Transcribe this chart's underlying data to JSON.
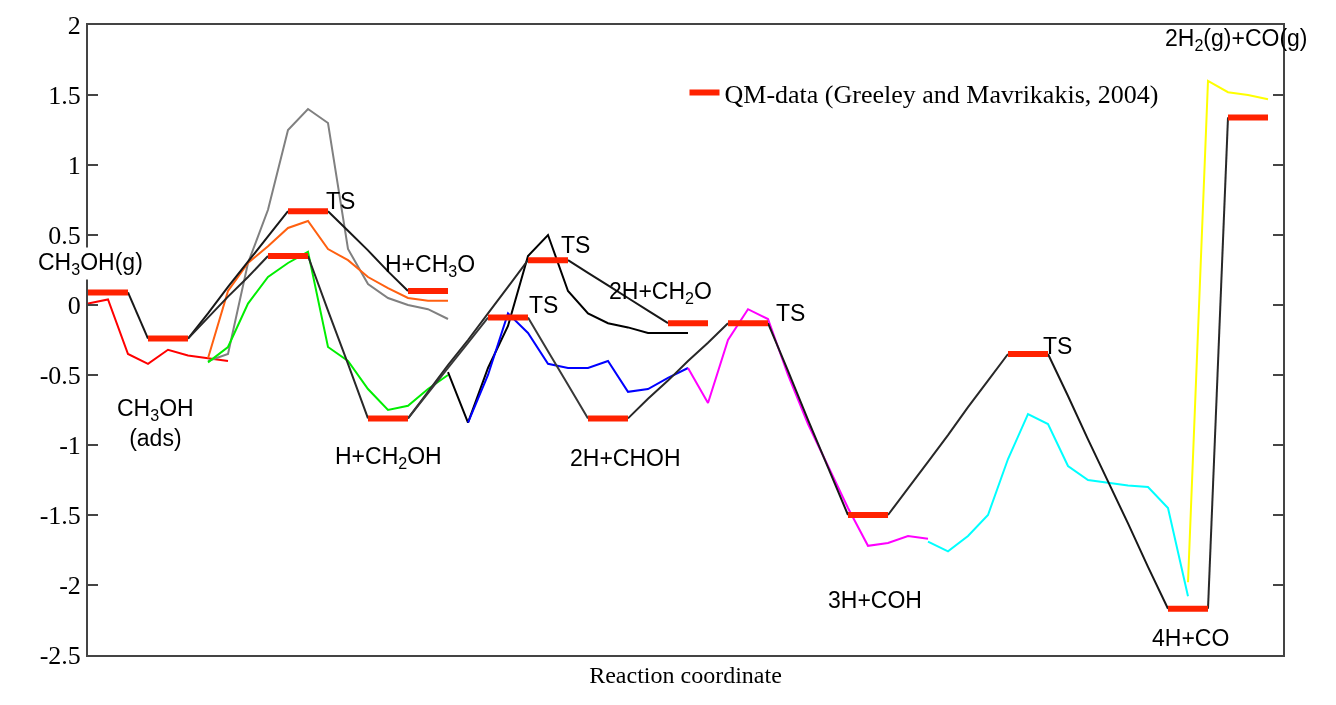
{
  "chart_data": {
    "type": "line",
    "xlabel": "Reaction coordinate",
    "categories": [
      null,
      null,
      null,
      null,
      null,
      null,
      null,
      null,
      null,
      null,
      null,
      null,
      null,
      null,
      null,
      null,
      null,
      null,
      null,
      null,
      null,
      null,
      null,
      null,
      null,
      null,
      null,
      null,
      null,
      null,
      null,
      null,
      null,
      null,
      null,
      null,
      null,
      null,
      null,
      null,
      null,
      null,
      null,
      null,
      null,
      null,
      null,
      null,
      null,
      null,
      null,
      null,
      null,
      null,
      null,
      null,
      null,
      null,
      null,
      null
    ],
    "ylim": [
      -2.5,
      2
    ],
    "yticks": [
      -2.5,
      -2,
      -1.5,
      -1,
      -0.5,
      0,
      0.5,
      1,
      1.5,
      2
    ],
    "tick_labels": "y",
    "grid": false,
    "legend": "top right",
    "line_style": "solid",
    "series": [
      {
        "color": "#ff0000",
        "values": [
          0.01,
          0.04,
          -0.35,
          -0.42,
          -0.32,
          -0.36,
          -0.38,
          -0.4,
          null,
          null,
          null,
          null,
          null,
          null,
          null,
          null,
          null,
          null,
          null,
          null,
          null,
          null,
          null,
          null,
          null,
          null,
          null,
          null,
          null,
          null,
          null,
          null,
          null,
          null,
          null,
          null,
          null,
          null,
          null,
          null,
          null,
          null,
          null,
          null,
          null,
          null,
          null,
          null,
          null,
          null,
          null,
          null,
          null,
          null,
          null,
          null,
          null,
          null,
          null,
          null
        ]
      },
      {
        "color": "#808080",
        "values": [
          null,
          null,
          null,
          null,
          null,
          null,
          -0.4,
          -0.35,
          0.3,
          0.68,
          1.25,
          1.4,
          1.3,
          0.4,
          0.15,
          0.05,
          0,
          -0.03,
          -0.1,
          null,
          null,
          null,
          null,
          null,
          null,
          null,
          null,
          null,
          null,
          null,
          null,
          null,
          null,
          null,
          null,
          null,
          null,
          null,
          null,
          null,
          null,
          null,
          null,
          null,
          null,
          null,
          null,
          null,
          null,
          null,
          null,
          null,
          null,
          null,
          null,
          null,
          null,
          null,
          null,
          null
        ]
      },
      {
        "color": "#ff6010",
        "values": [
          null,
          null,
          null,
          null,
          null,
          null,
          -0.38,
          0.1,
          0.3,
          0.42,
          0.55,
          0.6,
          0.4,
          0.32,
          0.2,
          0.12,
          0.05,
          0.03,
          0.03,
          null,
          null,
          null,
          null,
          null,
          null,
          null,
          null,
          null,
          null,
          null,
          null,
          null,
          null,
          null,
          null,
          null,
          null,
          null,
          null,
          null,
          null,
          null,
          null,
          null,
          null,
          null,
          null,
          null,
          null,
          null,
          null,
          null,
          null,
          null,
          null,
          null,
          null,
          null,
          null,
          null
        ]
      },
      {
        "color": "#00ee00",
        "values": [
          null,
          null,
          null,
          null,
          null,
          null,
          -0.41,
          -0.3,
          0.01,
          0.2,
          0.3,
          0.38,
          -0.3,
          -0.4,
          -0.6,
          -0.75,
          -0.72,
          -0.6,
          -0.5,
          null,
          null,
          null,
          null,
          null,
          null,
          null,
          null,
          null,
          null,
          null,
          null,
          null,
          null,
          null,
          null,
          null,
          null,
          null,
          null,
          null,
          null,
          null,
          null,
          null,
          null,
          null,
          null,
          null,
          null,
          null,
          null,
          null,
          null,
          null,
          null,
          null,
          null,
          null,
          null,
          null
        ]
      },
      {
        "color": "#000000",
        "values": [
          null,
          null,
          null,
          null,
          null,
          null,
          null,
          null,
          null,
          null,
          null,
          null,
          null,
          null,
          null,
          null,
          null,
          null,
          -0.48,
          -0.84,
          -0.45,
          -0.15,
          0.35,
          0.5,
          0.1,
          -0.06,
          -0.13,
          -0.16,
          -0.2,
          -0.2,
          -0.2,
          null,
          null,
          null,
          null,
          null,
          null,
          null,
          null,
          null,
          null,
          null,
          null,
          null,
          null,
          null,
          null,
          null,
          null,
          null,
          null,
          null,
          null,
          null,
          null,
          null,
          null,
          null,
          null,
          null
        ]
      },
      {
        "color": "#0000ff",
        "values": [
          null,
          null,
          null,
          null,
          null,
          null,
          null,
          null,
          null,
          null,
          null,
          null,
          null,
          null,
          null,
          null,
          null,
          null,
          null,
          -0.84,
          -0.5,
          -0.06,
          -0.2,
          -0.42,
          -0.45,
          -0.45,
          -0.4,
          -0.62,
          -0.6,
          -0.52,
          -0.45,
          null,
          null,
          null,
          null,
          null,
          null,
          null,
          null,
          null,
          null,
          null,
          null,
          null,
          null,
          null,
          null,
          null,
          null,
          null,
          null,
          null,
          null,
          null,
          null,
          null,
          null,
          null,
          null,
          null
        ]
      },
      {
        "color": "#ff00ff",
        "values": [
          null,
          null,
          null,
          null,
          null,
          null,
          null,
          null,
          null,
          null,
          null,
          null,
          null,
          null,
          null,
          null,
          null,
          null,
          null,
          null,
          null,
          null,
          null,
          null,
          null,
          null,
          null,
          null,
          null,
          null,
          -0.45,
          -0.7,
          -0.25,
          -0.03,
          -0.1,
          -0.5,
          -0.85,
          -1.15,
          -1.45,
          -1.72,
          -1.7,
          -1.65,
          -1.67,
          null,
          null,
          null,
          null,
          null,
          null,
          null,
          null,
          null,
          null,
          null,
          null,
          null,
          null,
          null,
          null,
          null
        ]
      },
      {
        "color": "#00ffff",
        "values": [
          null,
          null,
          null,
          null,
          null,
          null,
          null,
          null,
          null,
          null,
          null,
          null,
          null,
          null,
          null,
          null,
          null,
          null,
          null,
          null,
          null,
          null,
          null,
          null,
          null,
          null,
          null,
          null,
          null,
          null,
          null,
          null,
          null,
          null,
          null,
          null,
          null,
          null,
          null,
          null,
          null,
          null,
          -1.69,
          -1.76,
          -1.65,
          -1.5,
          -1.1,
          -0.78,
          -0.85,
          -1.15,
          -1.25,
          -1.27,
          -1.29,
          -1.3,
          -1.45,
          -2.08,
          null,
          null,
          null,
          null
        ]
      },
      {
        "color": "#ffff00",
        "values": [
          null,
          null,
          null,
          null,
          null,
          null,
          null,
          null,
          null,
          null,
          null,
          null,
          null,
          null,
          null,
          null,
          null,
          null,
          null,
          null,
          null,
          null,
          null,
          null,
          null,
          null,
          null,
          null,
          null,
          null,
          null,
          null,
          null,
          null,
          null,
          null,
          null,
          null,
          null,
          null,
          null,
          null,
          null,
          null,
          null,
          null,
          null,
          null,
          null,
          null,
          null,
          null,
          null,
          null,
          null,
          -1.98,
          1.6,
          1.52,
          1.5,
          1.47
        ]
      },
      {
        "color": "#181818",
        "values": [
          null,
          null,
          0.09,
          -0.24,
          null,
          -0.24,
          -0.06,
          0.13,
          0.31,
          0.49,
          0.67,
          null,
          0.67,
          0.53,
          0.39,
          0.24,
          0.1,
          null,
          null,
          null,
          null,
          null,
          null,
          null,
          0.32,
          0.23,
          0.14,
          0.05,
          -0.04,
          -0.13,
          null,
          null,
          null,
          null,
          -0.13,
          -0.47,
          -0.82,
          -1.16,
          -1.5,
          null,
          null,
          null,
          null,
          null,
          null,
          null,
          null,
          null,
          -0.35,
          -0.65,
          -0.96,
          -1.26,
          -1.56,
          -1.87,
          -2.17,
          null,
          null,
          null,
          null,
          null
        ]
      },
      {
        "color": "#282828",
        "values": [
          null,
          null,
          null,
          null,
          null,
          -0.24,
          -0.09,
          0.06,
          0.2,
          0.35,
          null,
          0.35,
          -0.04,
          -0.42,
          -0.81,
          null,
          -0.81,
          -0.62,
          -0.43,
          -0.25,
          -0.06,
          0.13,
          0.32,
          null,
          null,
          null,
          null,
          -0.81,
          -0.67,
          -0.54,
          -0.4,
          -0.27,
          -0.13,
          null,
          null,
          null,
          null,
          null,
          null,
          null,
          -1.5,
          -1.31,
          -1.12,
          -0.93,
          -0.73,
          -0.54,
          -0.35,
          null,
          null,
          null,
          null,
          null,
          null,
          null,
          null,
          null,
          -2.17,
          1.34,
          null,
          null
        ]
      },
      {
        "color": "#383838",
        "values": [
          null,
          null,
          null,
          null,
          null,
          null,
          null,
          null,
          null,
          null,
          null,
          null,
          null,
          null,
          null,
          null,
          -0.81,
          -0.63,
          -0.45,
          -0.27,
          -0.09,
          null,
          -0.09,
          -0.33,
          -0.57,
          -0.81,
          null,
          null,
          null,
          null,
          null,
          null,
          null,
          null,
          null,
          null,
          null,
          null,
          null,
          null,
          null,
          null,
          null,
          null,
          null,
          null,
          null,
          null,
          null,
          null,
          null,
          null,
          null,
          null,
          null,
          null,
          null,
          null,
          null,
          null
        ]
      },
      {
        "name": "QM-data (Greeley and Mavrikakis, 2004)",
        "color": "#ff2200",
        "values": [
          0.09,
          0.09,
          0.09,
          null,
          null,
          null,
          null,
          null,
          null,
          0.35,
          0.35,
          0.35,
          null,
          null,
          -0.81,
          -0.81,
          -0.81,
          null,
          null,
          null,
          -0.09,
          -0.09,
          -0.09,
          null,
          null,
          -0.81,
          -0.81,
          -0.81,
          null,
          null,
          null,
          null,
          -0.13,
          -0.13,
          -0.13,
          null,
          null,
          null,
          null,
          null,
          null,
          null,
          null,
          null,
          null,
          null,
          -0.35,
          -0.35,
          -0.35,
          null,
          null,
          null,
          null,
          null,
          -2.17,
          -2.17,
          -2.17,
          null,
          null,
          null
        ]
      },
      {
        "color": "#ff2200",
        "values": [
          null,
          null,
          null,
          -0.24,
          -0.24,
          -0.24,
          null,
          null,
          null,
          null,
          0.67,
          0.67,
          0.67,
          null,
          null,
          null,
          0.1,
          0.1,
          0.1,
          null,
          null,
          null,
          0.32,
          0.32,
          0.32,
          null,
          null,
          null,
          null,
          -0.13,
          -0.13,
          -0.13,
          null,
          null,
          null,
          null,
          null,
          null,
          -1.5,
          -1.5,
          -1.5,
          null,
          null,
          null,
          null,
          null,
          null,
          null,
          null,
          null,
          null,
          null,
          null,
          null,
          null,
          null,
          null,
          1.34,
          1.34,
          1.34
        ]
      }
    ],
    "annotations": [
      "CH$_{3}$OH(g)",
      "CH$_{3}$OH\n(ads)",
      "TS",
      "H+CH$_{3}$O",
      "H+CH$_{2}$OH",
      "TS",
      "TS",
      "2H+CH$_{2}$O",
      "2H+CHOH",
      "TS",
      "TS",
      "3H+COH",
      "4H+CO",
      "2H$_{2}$(g)+CO(g)"
    ]
  }
}
